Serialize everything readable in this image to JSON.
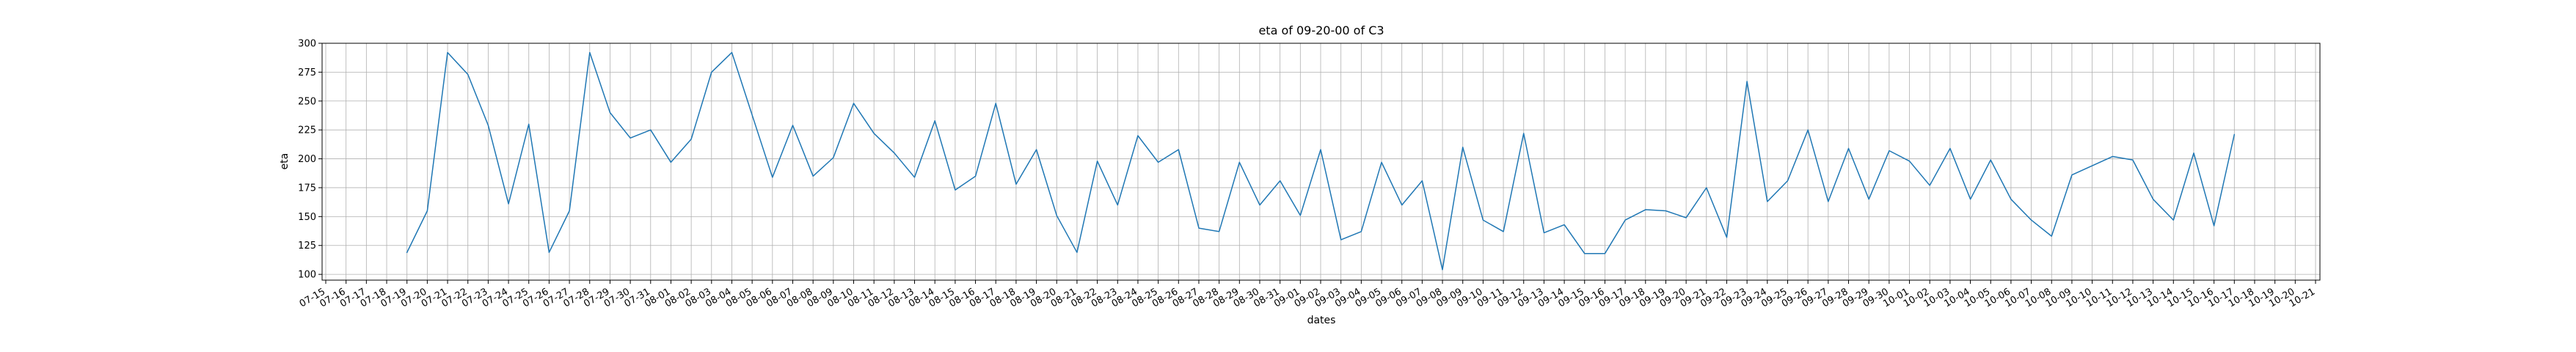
{
  "chart_data": {
    "type": "line",
    "title": "eta of 09-20-00 of C3",
    "xlabel": "dates",
    "ylabel": "eta",
    "ylim": [
      95,
      300
    ],
    "yticks": [
      100,
      125,
      150,
      175,
      200,
      225,
      250,
      275,
      300
    ],
    "grid": true,
    "line_color": "#1f77b4",
    "x_ticks": [
      "07-15",
      "07-16",
      "07-17",
      "07-18",
      "07-19",
      "07-20",
      "07-21",
      "07-22",
      "07-23",
      "07-24",
      "07-25",
      "07-26",
      "07-27",
      "07-28",
      "07-29",
      "07-30",
      "07-31",
      "08-01",
      "08-02",
      "08-03",
      "08-04",
      "08-05",
      "08-06",
      "08-07",
      "08-08",
      "08-09",
      "08-10",
      "08-11",
      "08-12",
      "08-13",
      "08-14",
      "08-15",
      "08-16",
      "08-17",
      "08-18",
      "08-19",
      "08-20",
      "08-21",
      "08-22",
      "08-23",
      "08-24",
      "08-25",
      "08-26",
      "08-27",
      "08-28",
      "08-29",
      "08-30",
      "08-31",
      "09-01",
      "09-02",
      "09-03",
      "09-04",
      "09-05",
      "09-06",
      "09-07",
      "09-08",
      "09-09",
      "09-10",
      "09-11",
      "09-12",
      "09-13",
      "09-14",
      "09-15",
      "09-16",
      "09-17",
      "09-18",
      "09-19",
      "09-20",
      "09-21",
      "09-22",
      "09-23",
      "09-24",
      "09-25",
      "09-26",
      "09-27",
      "09-28",
      "09-29",
      "09-30",
      "10-01",
      "10-02",
      "10-03",
      "10-04",
      "10-05",
      "10-06",
      "10-07",
      "10-08",
      "10-09",
      "10-10",
      "10-11",
      "10-12",
      "10-13",
      "10-14",
      "10-15",
      "10-16",
      "10-17",
      "10-18",
      "10-19",
      "10-20",
      "10-21"
    ],
    "x": [
      "07-19",
      "07-20",
      "07-21",
      "07-22",
      "07-23",
      "07-24",
      "07-25",
      "07-26",
      "07-27",
      "07-28",
      "07-29",
      "07-30",
      "07-31",
      "08-01",
      "08-02",
      "08-03",
      "08-04",
      "08-05",
      "08-06",
      "08-07",
      "08-08",
      "08-09",
      "08-10",
      "08-11",
      "08-12",
      "08-13",
      "08-14",
      "08-15",
      "08-16",
      "08-17",
      "08-18",
      "08-19",
      "08-20",
      "08-21",
      "08-22",
      "08-23",
      "08-24",
      "08-25",
      "08-26",
      "08-27",
      "08-28",
      "08-29",
      "08-30",
      "08-31",
      "09-01",
      "09-02",
      "09-03",
      "09-04",
      "09-05",
      "09-06",
      "09-07",
      "09-08",
      "09-09",
      "09-10",
      "09-11",
      "09-12",
      "09-13",
      "09-14",
      "09-15",
      "09-16",
      "09-17",
      "09-18",
      "09-19",
      "09-20",
      "09-21",
      "09-22",
      "09-23",
      "09-24",
      "09-25",
      "09-26",
      "09-27",
      "09-28",
      "09-29",
      "09-30",
      "10-01",
      "10-02",
      "10-03",
      "10-04",
      "10-05",
      "10-06",
      "10-07",
      "10-08",
      "10-09",
      "10-11",
      "10-12",
      "10-13",
      "10-14",
      "10-15",
      "10-16",
      "10-17"
    ],
    "values": [
      119,
      155,
      292,
      273,
      229,
      161,
      230,
      119,
      155,
      292,
      240,
      218,
      225,
      197,
      217,
      275,
      292,
      238,
      184,
      229,
      185,
      201,
      248,
      222,
      205,
      184,
      233,
      173,
      185,
      248,
      178,
      208,
      151,
      119,
      198,
      160,
      220,
      197,
      208,
      140,
      137,
      197,
      160,
      181,
      151,
      208,
      130,
      137,
      197,
      160,
      181,
      104,
      210,
      147,
      137,
      222,
      136,
      143,
      118,
      118,
      147,
      156,
      155,
      149,
      175,
      132,
      267,
      163,
      181,
      225,
      163,
      209,
      165,
      207,
      198,
      177,
      209,
      165,
      199,
      165,
      147,
      133,
      186,
      202,
      199,
      165,
      147,
      205,
      142,
      221
    ]
  }
}
